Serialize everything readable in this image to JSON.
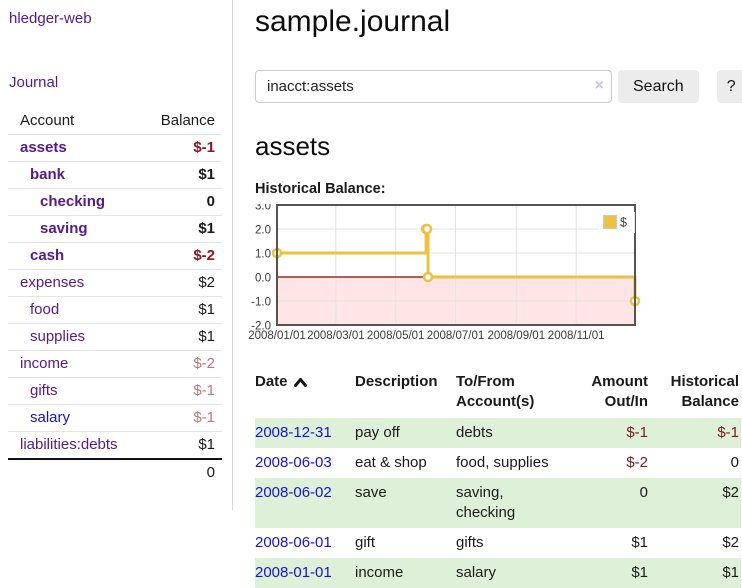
{
  "colors": {
    "accent_purple": "#551a8b",
    "link_blue": "#1414d2",
    "negative_strong": "#8f1620",
    "negative_muted": "#c2767c",
    "negative_txn": "#7d1b1e",
    "row_green": "#dff0d8",
    "chart_line": "#edc240",
    "zero_line": "#8b0000",
    "negative_fill": "rgba(255,0,0,0.1)"
  },
  "sidebar": {
    "app_title": "hledger-web",
    "journal_link": "Journal",
    "accounts_header": {
      "account": "Account",
      "balance": "Balance"
    },
    "accounts": [
      {
        "name": "assets",
        "balance": "$-1",
        "level": 0,
        "emph": true,
        "link": "purple"
      },
      {
        "name": "bank",
        "balance": "$1",
        "level": 1,
        "emph": true,
        "link": "purple"
      },
      {
        "name": "checking",
        "balance": "0",
        "level": 2,
        "emph": true,
        "link": "purple"
      },
      {
        "name": "saving",
        "balance": "$1",
        "level": 2,
        "emph": true,
        "link": "purple"
      },
      {
        "name": "cash",
        "balance": "$-2",
        "level": 1,
        "emph": true,
        "link": "purple"
      },
      {
        "name": "expenses",
        "balance": "$2",
        "level": 0,
        "emph": false,
        "link": "purple"
      },
      {
        "name": "food",
        "balance": "$1",
        "level": 1,
        "emph": false,
        "link": "purple"
      },
      {
        "name": "supplies",
        "balance": "$1",
        "level": 1,
        "emph": false,
        "link": "purple"
      },
      {
        "name": "income",
        "balance": "$-2",
        "level": 0,
        "emph": false,
        "link": "purple"
      },
      {
        "name": "gifts",
        "balance": "$-1",
        "level": 1,
        "emph": false,
        "link": "purple"
      },
      {
        "name": "salary",
        "balance": "$-1",
        "level": 1,
        "emph": false,
        "link": "blue"
      },
      {
        "name": "liabilities:debts",
        "balance": "$1",
        "level": 0,
        "emph": false,
        "link": "purple"
      }
    ],
    "total": "0"
  },
  "header": {
    "title": "sample.journal"
  },
  "search": {
    "query": "inacct:assets",
    "clear_icon": "×",
    "search_label": "Search",
    "help_label": "?"
  },
  "account_page": {
    "title": "assets",
    "chart_label": "Historical Balance:"
  },
  "chart_data": {
    "type": "line",
    "step": true,
    "title": "Historical Balance",
    "series": [
      {
        "name": "$",
        "color": "#edc240",
        "points": [
          {
            "date": "2008-01-01",
            "value": 1
          },
          {
            "date": "2008-06-01",
            "value": 2
          },
          {
            "date": "2008-06-02",
            "value": 2
          },
          {
            "date": "2008-06-03",
            "value": 0
          },
          {
            "date": "2008-12-31",
            "value": -1
          }
        ]
      }
    ],
    "xlim": [
      "2008-01-01",
      "2008-12-31"
    ],
    "ylim": [
      -2,
      3
    ],
    "x_ticks": [
      {
        "date": "2008-01-01",
        "label": "2008/01/01"
      },
      {
        "date": "2008-03-01",
        "label": "2008/03/01"
      },
      {
        "date": "2008-05-01",
        "label": "2008/05/01"
      },
      {
        "date": "2008-07-01",
        "label": "2008/07/01"
      },
      {
        "date": "2008-09-01",
        "label": "2008/09/01"
      },
      {
        "date": "2008-11-01",
        "label": "2008/11/01"
      }
    ],
    "y_ticks": [
      "3.0",
      "2.0",
      "1.0",
      "0.0",
      "-1.0",
      "-2.0"
    ],
    "grid": true,
    "legend": {
      "label": "$",
      "position": "top-right"
    },
    "negative_region_shaded": true
  },
  "transactions": {
    "headers": {
      "date": "Date",
      "description": "Description",
      "accounts": "To/From Account(s)",
      "amount": "Amount Out/In",
      "balance": "Historical Balance"
    },
    "sort": {
      "column": "date",
      "direction": "ascending"
    },
    "rows": [
      {
        "date": "2008-12-31",
        "description": "pay off",
        "accounts": "debts",
        "amount": "$-1",
        "balance": "$-1"
      },
      {
        "date": "2008-06-03",
        "description": "eat & shop",
        "accounts": "food, supplies",
        "amount": "$-2",
        "balance": "0"
      },
      {
        "date": "2008-06-02",
        "description": "save",
        "accounts": "saving, checking",
        "amount": "0",
        "balance": "$2"
      },
      {
        "date": "2008-06-01",
        "description": "gift",
        "accounts": "gifts",
        "amount": "$1",
        "balance": "$2"
      },
      {
        "date": "2008-01-01",
        "description": "income",
        "accounts": "salary",
        "amount": "$1",
        "balance": "$1"
      }
    ]
  }
}
